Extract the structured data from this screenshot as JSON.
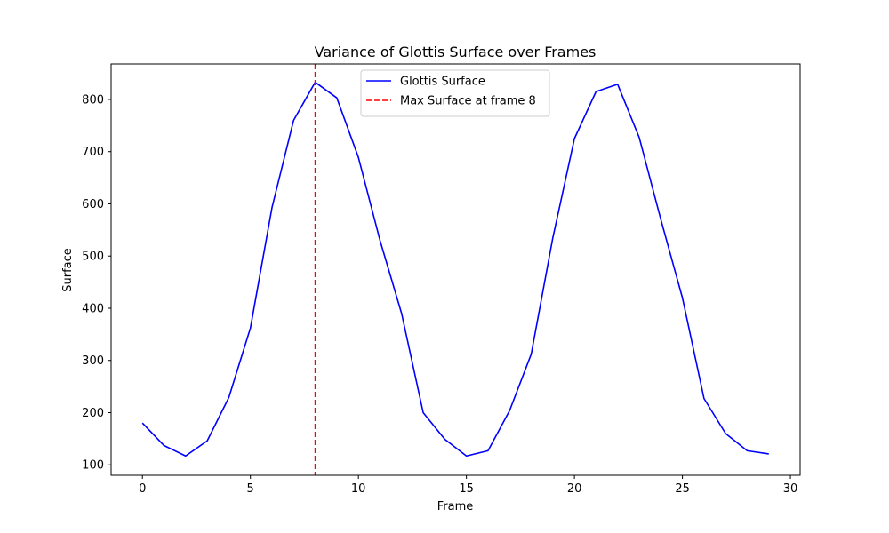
{
  "chart_data": {
    "type": "line",
    "title": "Variance of Glottis Surface over Frames",
    "xlabel": "Frame",
    "ylabel": "Surface",
    "xlim": [
      -1.45,
      30.45
    ],
    "ylim": [
      80,
      868
    ],
    "xticks": [
      0,
      5,
      10,
      15,
      20,
      25,
      30
    ],
    "yticks": [
      100,
      200,
      300,
      400,
      500,
      600,
      700,
      800
    ],
    "grid": false,
    "legend_position": "top-center",
    "series": [
      {
        "name": "Glottis Surface",
        "color": "#0000ff",
        "style": "solid",
        "x": [
          0,
          1,
          2,
          3,
          4,
          5,
          6,
          7,
          8,
          9,
          10,
          11,
          12,
          13,
          14,
          15,
          16,
          17,
          18,
          19,
          20,
          21,
          22,
          23,
          24,
          25,
          26,
          27,
          28,
          29
        ],
        "values": [
          180,
          137,
          117,
          146,
          229,
          362,
          593,
          760,
          833,
          803,
          689,
          530,
          390,
          200,
          149,
          117,
          127,
          204,
          312,
          535,
          725,
          815,
          829,
          727,
          570,
          420,
          227,
          160,
          127,
          121
        ]
      }
    ],
    "reference_lines": [
      {
        "name": "Max Surface at frame 8",
        "orientation": "vertical",
        "x": 8,
        "color": "#ff0000",
        "style": "dashed"
      }
    ]
  }
}
